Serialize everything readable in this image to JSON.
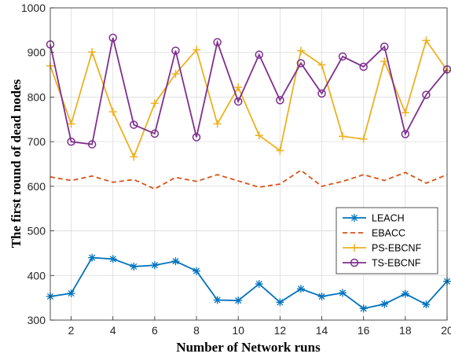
{
  "chart_data": {
    "type": "line",
    "title": "",
    "xlabel": "Number of Network runs",
    "ylabel": "The first round of dead nodes",
    "xlim": [
      1,
      20
    ],
    "ylim": [
      300,
      1000
    ],
    "xticks": [
      2,
      4,
      6,
      8,
      10,
      12,
      14,
      16,
      18,
      20
    ],
    "yticks": [
      300,
      400,
      500,
      600,
      700,
      800,
      900,
      1000
    ],
    "grid": true,
    "legend_position": "right",
    "x": [
      1,
      2,
      3,
      4,
      5,
      6,
      7,
      8,
      9,
      10,
      11,
      12,
      13,
      14,
      15,
      16,
      17,
      18,
      19,
      20
    ],
    "series": [
      {
        "name": "LEACH",
        "color": "#0072BD",
        "marker": "asterisk",
        "line_style": "solid",
        "values": [
          353,
          360,
          440,
          437,
          420,
          423,
          432,
          410,
          345,
          344,
          381,
          340,
          370,
          353,
          361,
          326,
          336,
          359,
          335,
          387
        ]
      },
      {
        "name": "EBACC",
        "color": "#D95319",
        "marker": "none",
        "line_style": "dashed",
        "values": [
          621,
          613,
          623,
          609,
          615,
          594,
          620,
          611,
          626,
          612,
          598,
          605,
          636,
          600,
          611,
          626,
          613,
          631,
          607,
          626
        ]
      },
      {
        "name": "PS-EBCNF",
        "color": "#EDB120",
        "marker": "plus",
        "line_style": "solid",
        "values": [
          870,
          740,
          901,
          767,
          666,
          786,
          852,
          906,
          740,
          822,
          714,
          680,
          904,
          872,
          712,
          706,
          880,
          765,
          927,
          860
        ]
      },
      {
        "name": "TS-EBCNF",
        "color": "#7E2F8E",
        "marker": "circle",
        "line_style": "solid",
        "values": [
          918,
          700,
          694,
          933,
          738,
          718,
          904,
          710,
          923,
          790,
          895,
          793,
          876,
          808,
          891,
          868,
          913,
          717,
          805,
          862
        ]
      }
    ]
  }
}
